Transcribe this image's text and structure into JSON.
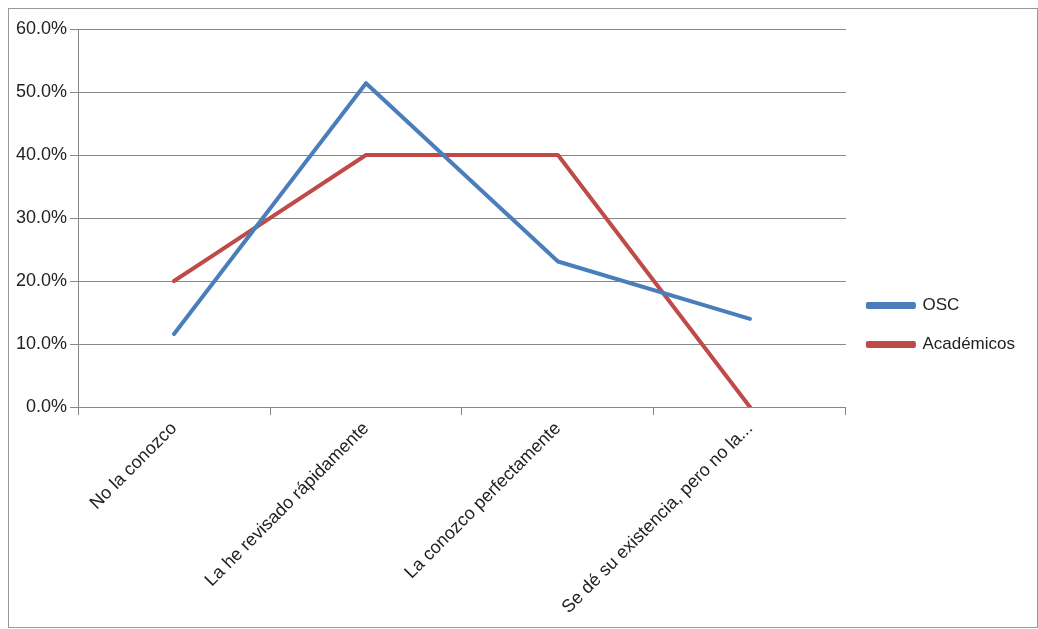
{
  "chart_data": {
    "type": "line",
    "categories": [
      "No la conozco",
      "La he revisado rápidamente",
      "La conozco perfectamente",
      "Se dé su existencia, pero no la..."
    ],
    "series": [
      {
        "name": "OSC",
        "color": "#4a7ebb",
        "values": [
          11.6,
          51.4,
          23.1,
          14.0
        ]
      },
      {
        "name": "Académicos",
        "color": "#be4b48",
        "values": [
          20.0,
          40.0,
          40.0,
          0.0
        ]
      }
    ],
    "ylim": [
      0,
      60
    ],
    "yticks": [
      {
        "value": 0,
        "label": "0.0%"
      },
      {
        "value": 10,
        "label": "10.0%"
      },
      {
        "value": 20,
        "label": "20.0%"
      },
      {
        "value": 30,
        "label": "30.0%"
      },
      {
        "value": 40,
        "label": "40.0%"
      },
      {
        "value": 50,
        "label": "50.0%"
      },
      {
        "value": 60,
        "label": "60.0%"
      }
    ],
    "grid": "y",
    "legend": "right",
    "marker": "none",
    "line_style": "solid"
  }
}
